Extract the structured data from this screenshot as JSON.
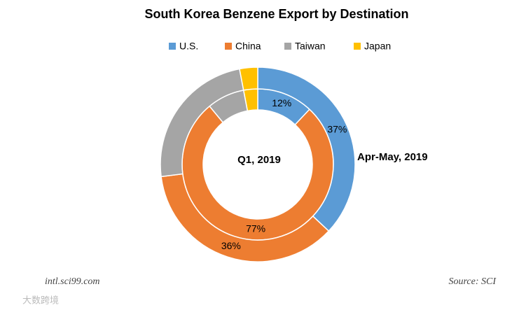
{
  "chart_data": {
    "type": "donut",
    "title": "South Korea Benzene Export by Destination",
    "categories": [
      "U.S.",
      "China",
      "Taiwan",
      "Japan"
    ],
    "colors": [
      "#5b9bd5",
      "#ed7d31",
      "#a5a5a5",
      "#ffc000"
    ],
    "series": [
      {
        "name": "Q1, 2019",
        "values": [
          12,
          77,
          8,
          3
        ],
        "value_labels": [
          "12%",
          "77%",
          null,
          null
        ]
      },
      {
        "name": "Apr-May, 2019",
        "values": [
          37,
          36,
          24,
          3
        ],
        "value_labels": [
          "37%",
          "36%",
          null,
          null
        ]
      }
    ],
    "legend": "top",
    "footnote_left": "intl.sci99.com",
    "footnote_right": "Source: SCI",
    "watermark": "大数跨境"
  }
}
